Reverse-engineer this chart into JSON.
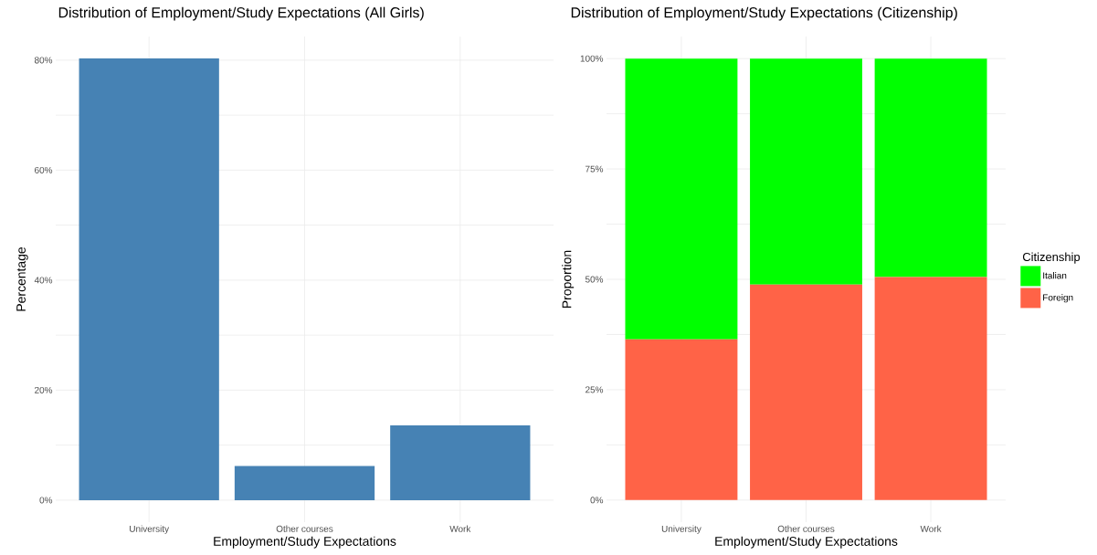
{
  "chart_data": [
    {
      "type": "bar",
      "title": "Distribution of Employment/Study Expectations (All Girls)",
      "xlabel": "Employment/Study Expectations",
      "ylabel": "Percentage",
      "categories": [
        "University",
        "Other courses",
        "Work"
      ],
      "values": [
        80.3,
        6.2,
        13.6
      ],
      "color": "#4682b4",
      "ylim": [
        -4,
        84.3
      ],
      "yticks": [
        {
          "value": 0,
          "label": "0%"
        },
        {
          "value": 10,
          "label": null
        },
        {
          "value": 20,
          "label": "20%"
        },
        {
          "value": 30,
          "label": null
        },
        {
          "value": 40,
          "label": "40%"
        },
        {
          "value": 50,
          "label": null
        },
        {
          "value": 60,
          "label": "60%"
        },
        {
          "value": 70,
          "label": null
        },
        {
          "value": 80,
          "label": "80%"
        }
      ],
      "grid": true
    },
    {
      "type": "bar",
      "title": "Distribution of Employment/Study Expectations (Citizenship)",
      "xlabel": "Employment/Study Expectations",
      "ylabel": "Proportion",
      "legend_title": "Citizenship",
      "categories": [
        "University",
        "Other courses",
        "Work"
      ],
      "stacked": true,
      "series": [
        {
          "name": "Foreign",
          "color": "#ff6347",
          "values": [
            36.4,
            48.8,
            50.5
          ]
        },
        {
          "name": "Italian",
          "color": "#00ff00",
          "values": [
            63.6,
            51.2,
            49.5
          ]
        }
      ],
      "ylim": [
        -5,
        105
      ],
      "yticks": [
        {
          "value": 0,
          "label": "0%"
        },
        {
          "value": 12.5,
          "label": null
        },
        {
          "value": 25,
          "label": "25%"
        },
        {
          "value": 37.5,
          "label": null
        },
        {
          "value": 50,
          "label": "50%"
        },
        {
          "value": 62.5,
          "label": null
        },
        {
          "value": 75,
          "label": "75%"
        },
        {
          "value": 87.5,
          "label": null
        },
        {
          "value": 100,
          "label": "100%"
        }
      ],
      "grid": true,
      "legend": "right"
    }
  ]
}
